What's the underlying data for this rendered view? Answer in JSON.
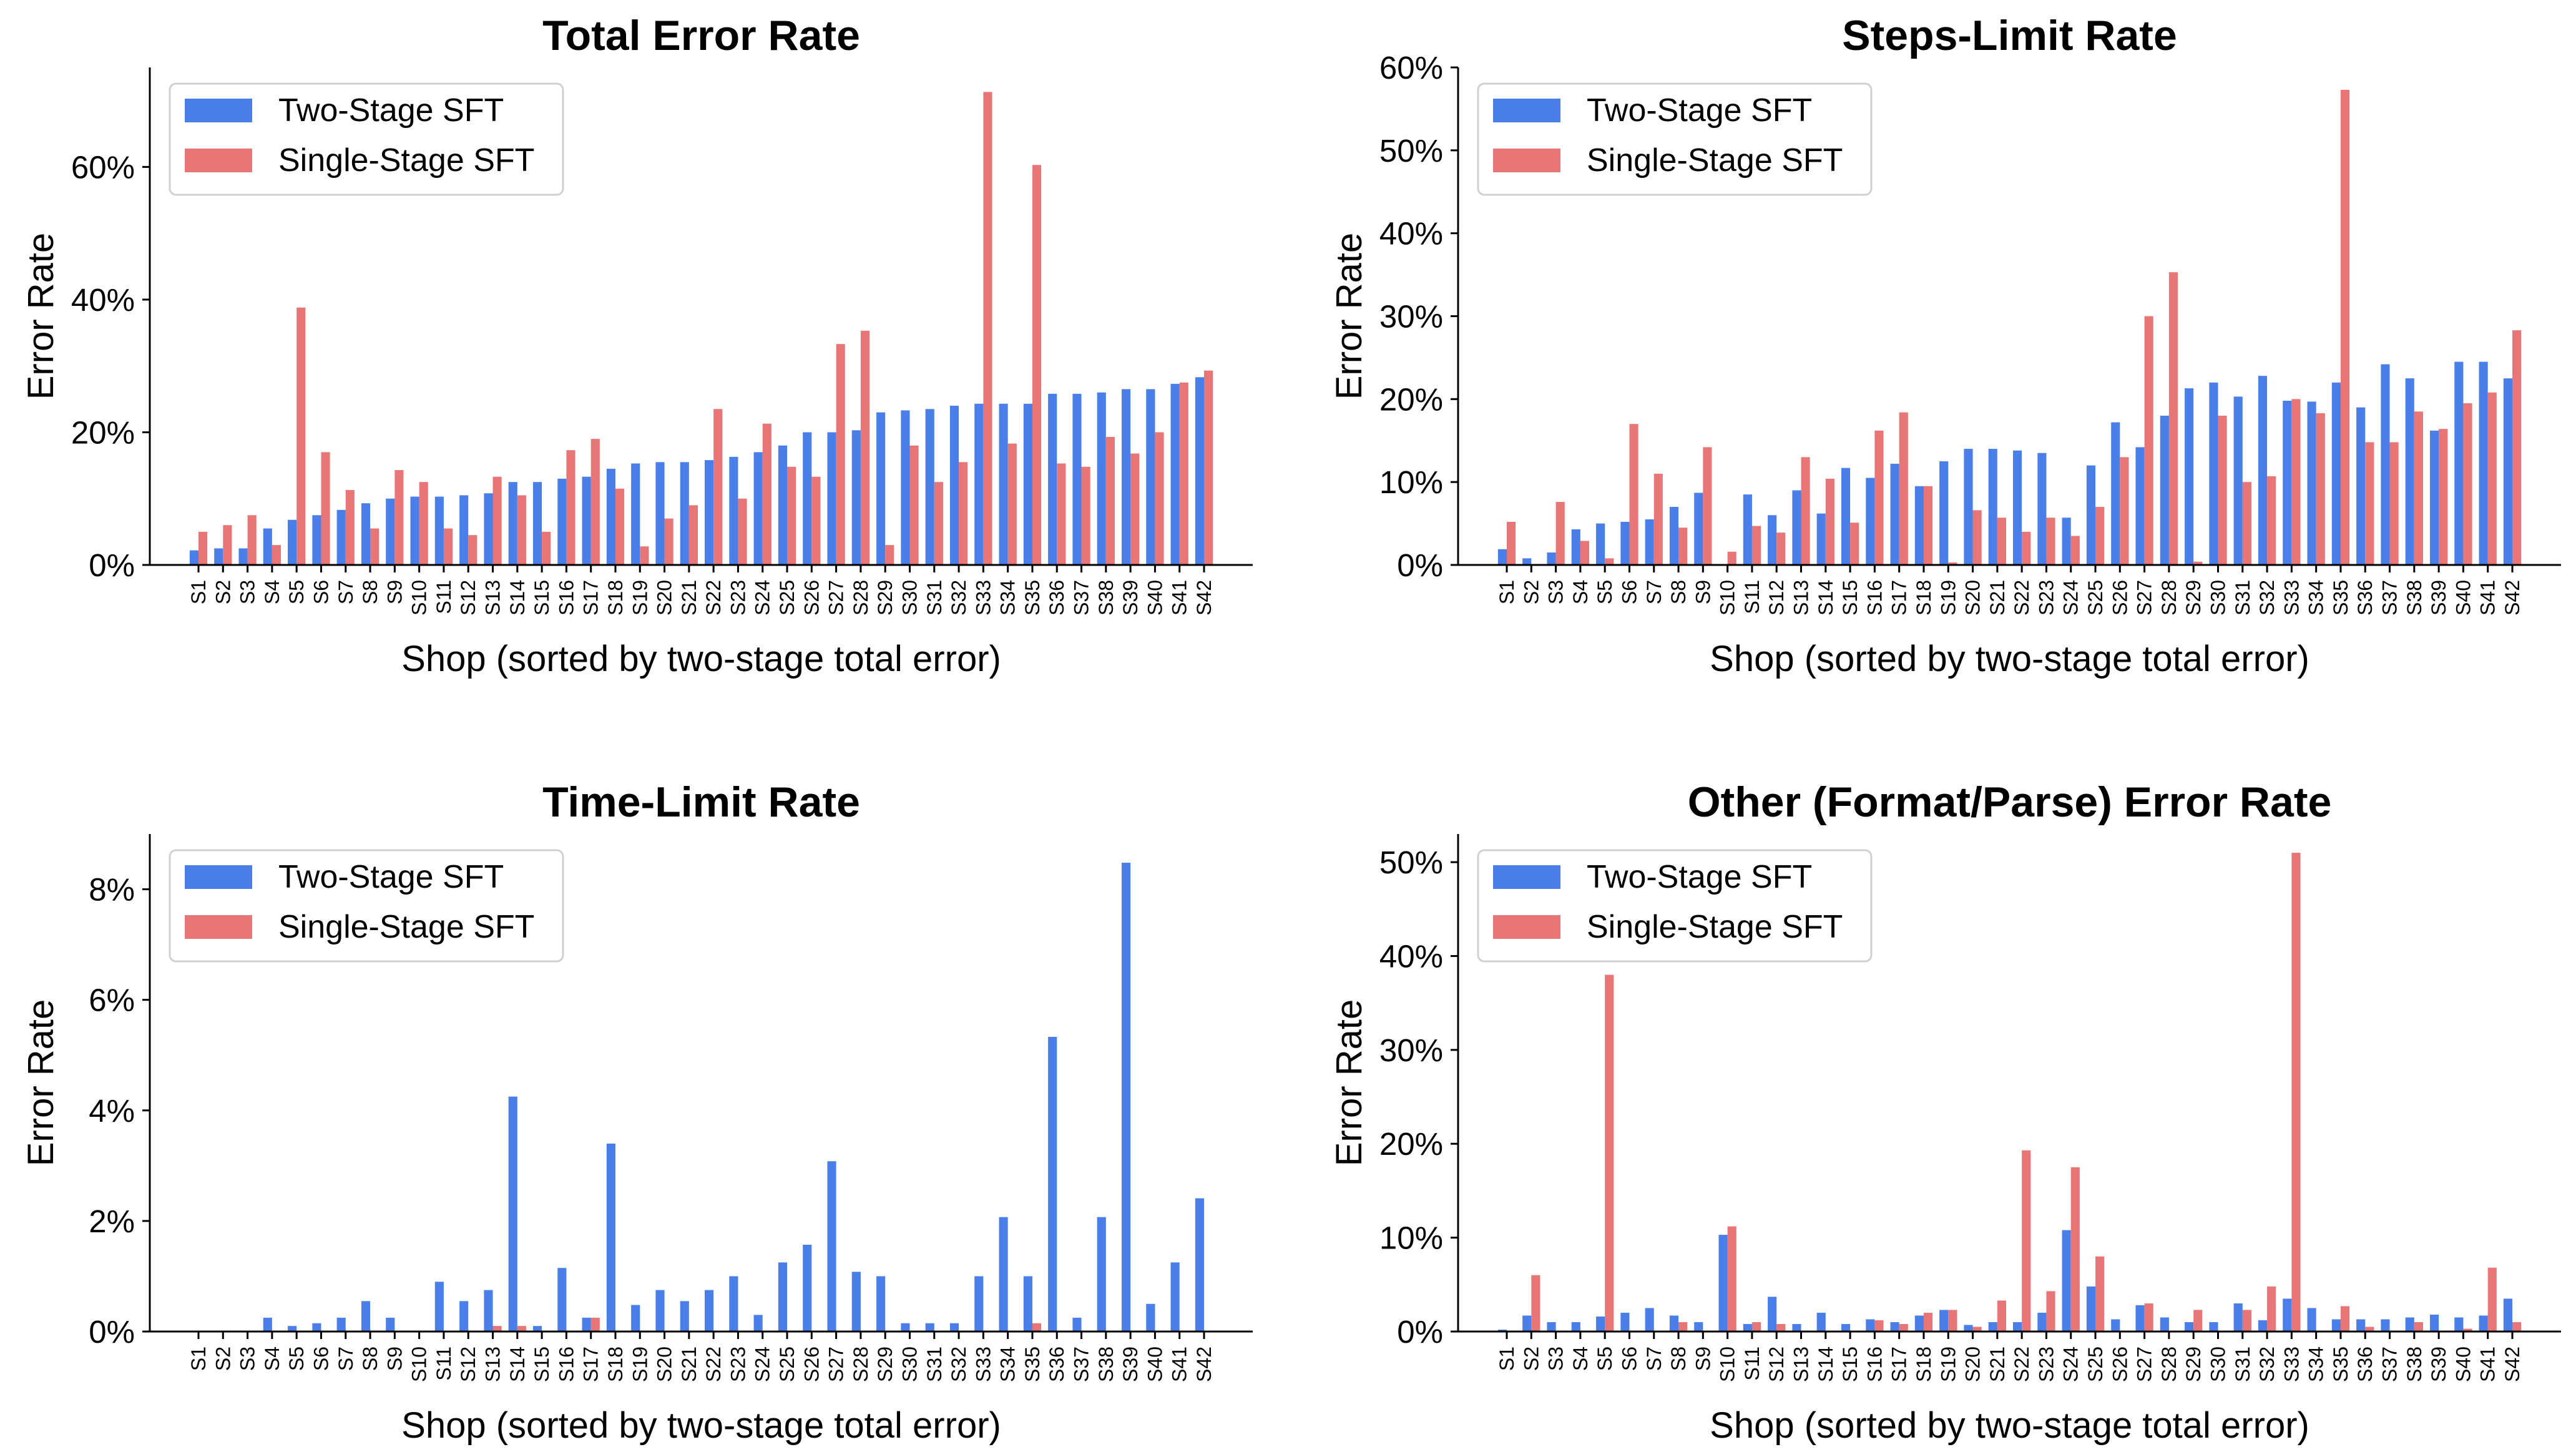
{
  "colors": {
    "two_stage": "#4a7ee8",
    "single_stage": "#e87676",
    "axis": "#000000"
  },
  "chart_data": [
    {
      "type": "bar",
      "title": "Total Error Rate",
      "xlabel": "Shop (sorted by two-stage total error)",
      "ylabel": "Error Rate",
      "ylim": [
        0,
        0.75
      ],
      "yticks": [
        0,
        0.2,
        0.4,
        0.6
      ],
      "ytick_labels": [
        "0%",
        "20%",
        "40%",
        "60%"
      ],
      "legend": "top-left",
      "categories": [
        "S1",
        "S2",
        "S3",
        "S4",
        "S5",
        "S6",
        "S7",
        "S8",
        "S9",
        "S10",
        "S11",
        "S12",
        "S13",
        "S14",
        "S15",
        "S16",
        "S17",
        "S18",
        "S19",
        "S20",
        "S21",
        "S22",
        "S23",
        "S24",
        "S25",
        "S26",
        "S27",
        "S28",
        "S29",
        "S30",
        "S31",
        "S32",
        "S33",
        "S34",
        "S35",
        "S36",
        "S37",
        "S38",
        "S39",
        "S40",
        "S41",
        "S42"
      ],
      "series": [
        {
          "name": "Two-Stage SFT",
          "values": [
            0.022,
            0.025,
            0.025,
            0.055,
            0.068,
            0.075,
            0.083,
            0.093,
            0.1,
            0.103,
            0.103,
            0.105,
            0.108,
            0.125,
            0.125,
            0.13,
            0.133,
            0.145,
            0.153,
            0.155,
            0.155,
            0.158,
            0.163,
            0.17,
            0.18,
            0.2,
            0.2,
            0.203,
            0.23,
            0.233,
            0.235,
            0.24,
            0.243,
            0.243,
            0.243,
            0.258,
            0.258,
            0.26,
            0.265,
            0.265,
            0.273,
            0.283
          ]
        },
        {
          "name": "Single-Stage SFT",
          "values": [
            0.05,
            0.06,
            0.075,
            0.03,
            0.388,
            0.17,
            0.113,
            0.055,
            0.143,
            0.125,
            0.055,
            0.045,
            0.133,
            0.105,
            0.05,
            0.173,
            0.19,
            0.115,
            0.028,
            0.07,
            0.09,
            0.235,
            0.1,
            0.213,
            0.148,
            0.133,
            0.333,
            0.353,
            0.03,
            0.18,
            0.125,
            0.155,
            0.713,
            0.183,
            0.603,
            0.153,
            0.148,
            0.193,
            0.168,
            0.2,
            0.275,
            0.293
          ]
        }
      ]
    },
    {
      "type": "bar",
      "title": "Steps-Limit Rate",
      "xlabel": "Shop (sorted by two-stage total error)",
      "ylabel": "Error Rate",
      "ylim": [
        0,
        0.6
      ],
      "yticks": [
        0,
        0.1,
        0.2,
        0.3,
        0.4,
        0.5,
        0.6
      ],
      "ytick_labels": [
        "0%",
        "10%",
        "20%",
        "30%",
        "40%",
        "50%",
        "60%"
      ],
      "legend": "top-left",
      "categories": [
        "S1",
        "S2",
        "S3",
        "S4",
        "S5",
        "S6",
        "S7",
        "S8",
        "S9",
        "S10",
        "S11",
        "S12",
        "S13",
        "S14",
        "S15",
        "S16",
        "S17",
        "S18",
        "S19",
        "S20",
        "S21",
        "S22",
        "S23",
        "S24",
        "S25",
        "S26",
        "S27",
        "S28",
        "S29",
        "S30",
        "S31",
        "S32",
        "S33",
        "S34",
        "S35",
        "S36",
        "S37",
        "S38",
        "S39",
        "S40",
        "S41",
        "S42"
      ],
      "series": [
        {
          "name": "Two-Stage SFT",
          "values": [
            0.019,
            0.008,
            0.015,
            0.043,
            0.05,
            0.052,
            0.055,
            0.07,
            0.087,
            0.0,
            0.085,
            0.06,
            0.09,
            0.062,
            0.117,
            0.105,
            0.122,
            0.095,
            0.125,
            0.14,
            0.14,
            0.138,
            0.135,
            0.057,
            0.12,
            0.172,
            0.142,
            0.18,
            0.213,
            0.22,
            0.203,
            0.228,
            0.198,
            0.197,
            0.22,
            0.19,
            0.242,
            0.225,
            0.162,
            0.245,
            0.245,
            0.225
          ]
        },
        {
          "name": "Single-Stage SFT",
          "values": [
            0.052,
            0.0,
            0.076,
            0.029,
            0.008,
            0.17,
            0.11,
            0.045,
            0.142,
            0.016,
            0.047,
            0.039,
            0.13,
            0.104,
            0.051,
            0.162,
            0.184,
            0.095,
            0.003,
            0.066,
            0.057,
            0.04,
            0.057,
            0.035,
            0.07,
            0.13,
            0.3,
            0.353,
            0.004,
            0.18,
            0.1,
            0.107,
            0.2,
            0.183,
            0.573,
            0.148,
            0.148,
            0.185,
            0.164,
            0.195,
            0.208,
            0.283
          ]
        }
      ]
    },
    {
      "type": "bar",
      "title": "Time-Limit Rate",
      "xlabel": "Shop (sorted by two-stage total error)",
      "ylabel": "Error Rate",
      "ylim": [
        0,
        0.09
      ],
      "yticks": [
        0,
        0.02,
        0.04,
        0.06,
        0.08
      ],
      "ytick_labels": [
        "0%",
        "2%",
        "4%",
        "6%",
        "8%"
      ],
      "legend": "top-left",
      "categories": [
        "S1",
        "S2",
        "S3",
        "S4",
        "S5",
        "S6",
        "S7",
        "S8",
        "S9",
        "S10",
        "S11",
        "S12",
        "S13",
        "S14",
        "S15",
        "S16",
        "S17",
        "S18",
        "S19",
        "S20",
        "S21",
        "S22",
        "S23",
        "S24",
        "S25",
        "S26",
        "S27",
        "S28",
        "S29",
        "S30",
        "S31",
        "S32",
        "S33",
        "S34",
        "S35",
        "S36",
        "S37",
        "S38",
        "S39",
        "S40",
        "S41",
        "S42"
      ],
      "series": [
        {
          "name": "Two-Stage SFT",
          "values": [
            0,
            0,
            0,
            0.0025,
            0.001,
            0.0015,
            0.0025,
            0.0055,
            0.0025,
            0,
            0.009,
            0.0055,
            0.0075,
            0.0425,
            0.001,
            0.0115,
            0.0025,
            0.034,
            0.0048,
            0.0075,
            0.0055,
            0.0075,
            0.01,
            0.003,
            0.0125,
            0.0157,
            0.0308,
            0.0108,
            0.01,
            0.0015,
            0.0015,
            0.0015,
            0.01,
            0.0207,
            0.01,
            0.0533,
            0.0025,
            0.0207,
            0.0848,
            0.005,
            0.0125,
            0.0241
          ]
        },
        {
          "name": "Single-Stage SFT",
          "values": [
            0,
            0,
            0,
            0,
            0,
            0,
            0,
            0,
            0,
            0,
            0,
            0,
            0.001,
            0.001,
            0,
            0,
            0.0025,
            0,
            0,
            0,
            0,
            0,
            0,
            0,
            0,
            0,
            0,
            0,
            0,
            0,
            0,
            0,
            0,
            0,
            0.0015,
            0,
            0,
            0,
            0,
            0,
            0,
            0
          ]
        }
      ]
    },
    {
      "type": "bar",
      "title": "Other (Format/Parse) Error Rate",
      "xlabel": "Shop (sorted by two-stage total error)",
      "ylabel": "Error Rate",
      "ylim": [
        0,
        0.53
      ],
      "yticks": [
        0,
        0.1,
        0.2,
        0.3,
        0.4,
        0.5
      ],
      "ytick_labels": [
        "0%",
        "10%",
        "20%",
        "30%",
        "40%",
        "50%"
      ],
      "legend": "top-left",
      "categories": [
        "S1",
        "S2",
        "S3",
        "S4",
        "S5",
        "S6",
        "S7",
        "S8",
        "S9",
        "S10",
        "S11",
        "S12",
        "S13",
        "S14",
        "S15",
        "S16",
        "S17",
        "S18",
        "S19",
        "S20",
        "S21",
        "S22",
        "S23",
        "S24",
        "S25",
        "S26",
        "S27",
        "S28",
        "S29",
        "S30",
        "S31",
        "S32",
        "S33",
        "S34",
        "S35",
        "S36",
        "S37",
        "S38",
        "S39",
        "S40",
        "S41",
        "S42"
      ],
      "series": [
        {
          "name": "Two-Stage SFT",
          "values": [
            0.002,
            0.017,
            0.01,
            0.01,
            0.016,
            0.02,
            0.025,
            0.017,
            0.01,
            0.103,
            0.008,
            0.037,
            0.008,
            0.02,
            0.008,
            0.013,
            0.01,
            0.017,
            0.023,
            0.007,
            0.01,
            0.01,
            0.02,
            0.108,
            0.048,
            0.013,
            0.028,
            0.015,
            0.01,
            0.01,
            0.03,
            0.012,
            0.035,
            0.025,
            0.013,
            0.013,
            0.013,
            0.015,
            0.018,
            0.015,
            0.017,
            0.035
          ]
        },
        {
          "name": "Single-Stage SFT",
          "values": [
            0,
            0.06,
            0,
            0,
            0.38,
            0,
            0,
            0.01,
            0,
            0.112,
            0.01,
            0.008,
            0,
            0,
            0,
            0.012,
            0.008,
            0.02,
            0.023,
            0.005,
            0.033,
            0.193,
            0.043,
            0.175,
            0.08,
            0,
            0.03,
            0,
            0.023,
            0,
            0.023,
            0.048,
            0.51,
            0,
            0.027,
            0.005,
            0,
            0.01,
            0,
            0.003,
            0.068,
            0.01
          ]
        }
      ]
    }
  ]
}
